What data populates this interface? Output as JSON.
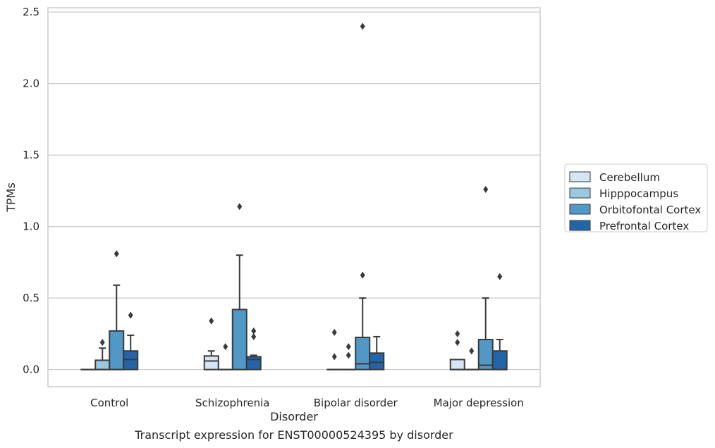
{
  "chart_data": {
    "type": "box",
    "title": "Transcript expression for ENST00000524395 by disorder",
    "xlabel": "Disorder",
    "ylabel": "TPMs",
    "ylim": [
      -0.12,
      2.53
    ],
    "yticks": [
      0.0,
      0.5,
      1.0,
      1.5,
      2.0,
      2.5
    ],
    "ytick_labels": [
      "0.0",
      "0.5",
      "1.0",
      "1.5",
      "2.0",
      "2.5"
    ],
    "grid": "horizontal",
    "legend_position": "right",
    "categories": [
      "Control",
      "Schizophrenia",
      "Bipolar disorder",
      "Major depression"
    ],
    "series": [
      {
        "name": "Cerebellum",
        "color": "#d6e5f4",
        "boxes": [
          {
            "q1": 0.0,
            "median": 0.0,
            "q3": 0.0,
            "whisker_low": 0.0,
            "whisker_high": 0.0,
            "outliers": []
          },
          {
            "q1": 0.0,
            "median": 0.06,
            "q3": 0.095,
            "whisker_low": 0.0,
            "whisker_high": 0.13,
            "outliers": [
              0.34
            ]
          },
          {
            "q1": 0.0,
            "median": 0.0,
            "q3": 0.0,
            "whisker_low": 0.0,
            "whisker_high": 0.0,
            "outliers": [
              0.09,
              0.26
            ]
          },
          {
            "q1": 0.0,
            "median": 0.0,
            "q3": 0.07,
            "whisker_low": 0.0,
            "whisker_high": 0.07,
            "outliers": [
              0.19,
              0.25
            ]
          }
        ]
      },
      {
        "name": "Hipppocampus",
        "color": "#9ac8e0",
        "boxes": [
          {
            "q1": 0.0,
            "median": 0.0,
            "q3": 0.065,
            "whisker_low": 0.0,
            "whisker_high": 0.15,
            "outliers": [
              0.19
            ]
          },
          {
            "q1": 0.0,
            "median": 0.0,
            "q3": 0.0,
            "whisker_low": 0.0,
            "whisker_high": 0.0,
            "outliers": [
              0.16
            ]
          },
          {
            "q1": 0.0,
            "median": 0.0,
            "q3": 0.0,
            "whisker_low": 0.0,
            "whisker_high": 0.0,
            "outliers": [
              0.1,
              0.16
            ]
          },
          {
            "q1": 0.0,
            "median": 0.0,
            "q3": 0.0,
            "whisker_low": 0.0,
            "whisker_high": 0.0,
            "outliers": [
              0.13
            ]
          }
        ]
      },
      {
        "name": "Orbitofontal Cortex",
        "color": "#5198c6",
        "boxes": [
          {
            "q1": 0.0,
            "median": 0.0,
            "q3": 0.27,
            "whisker_low": 0.0,
            "whisker_high": 0.59,
            "outliers": [
              0.81
            ]
          },
          {
            "q1": 0.0,
            "median": 0.0,
            "q3": 0.42,
            "whisker_low": 0.0,
            "whisker_high": 0.8,
            "outliers": [
              1.14
            ]
          },
          {
            "q1": 0.0,
            "median": 0.04,
            "q3": 0.225,
            "whisker_low": 0.0,
            "whisker_high": 0.5,
            "outliers": [
              0.66,
              2.4
            ]
          },
          {
            "q1": 0.0,
            "median": 0.03,
            "q3": 0.21,
            "whisker_low": 0.0,
            "whisker_high": 0.5,
            "outliers": [
              1.26
            ]
          }
        ]
      },
      {
        "name": "Prefrontal Cortex",
        "color": "#2465a8",
        "boxes": [
          {
            "q1": 0.0,
            "median": 0.07,
            "q3": 0.13,
            "whisker_low": 0.0,
            "whisker_high": 0.24,
            "outliers": [
              0.38
            ]
          },
          {
            "q1": 0.0,
            "median": 0.07,
            "q3": 0.09,
            "whisker_low": 0.0,
            "whisker_high": 0.1,
            "outliers": [
              0.23,
              0.27
            ]
          },
          {
            "q1": 0.0,
            "median": 0.05,
            "q3": 0.115,
            "whisker_low": 0.0,
            "whisker_high": 0.23,
            "outliers": []
          },
          {
            "q1": 0.0,
            "median": 0.0,
            "q3": 0.13,
            "whisker_low": 0.0,
            "whisker_high": 0.21,
            "outliers": [
              0.65
            ]
          }
        ]
      }
    ]
  }
}
